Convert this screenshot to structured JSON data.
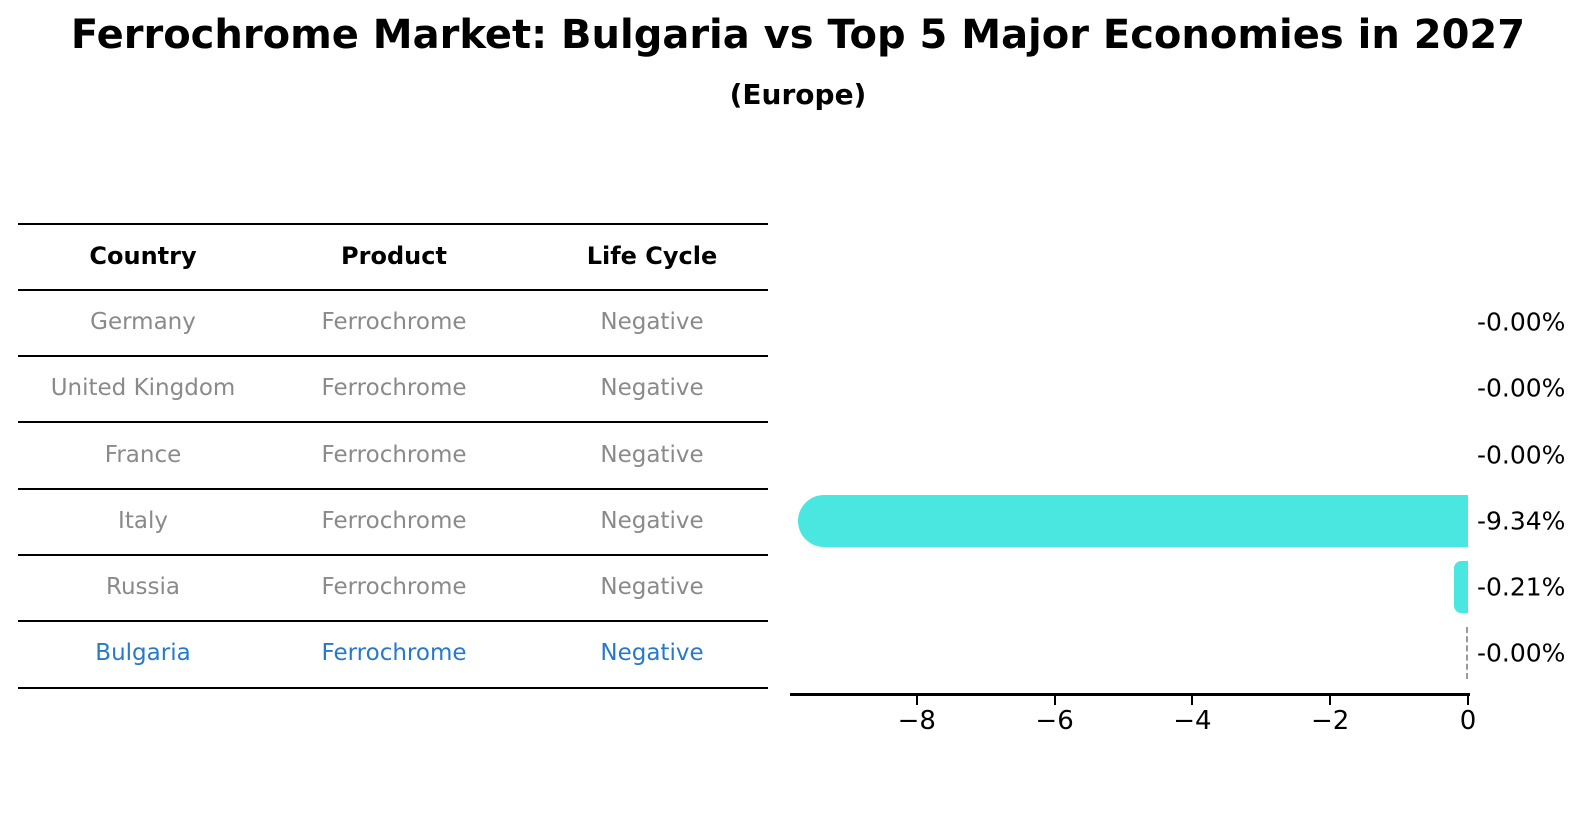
{
  "title": "Ferrochrome Market: Bulgaria vs Top 5 Major Economies in 2027",
  "subtitle": "(Europe)",
  "table": {
    "headers": [
      "Country",
      "Product",
      "Life Cycle"
    ],
    "rows": [
      {
        "country": "Germany",
        "product": "Ferrochrome",
        "life_cycle": "Negative",
        "highlighted": false
      },
      {
        "country": "United Kingdom",
        "product": "Ferrochrome",
        "life_cycle": "Negative",
        "highlighted": false
      },
      {
        "country": "France",
        "product": "Ferrochrome",
        "life_cycle": "Negative",
        "highlighted": false
      },
      {
        "country": "Italy",
        "product": "Ferrochrome",
        "life_cycle": "Negative",
        "highlighted": false
      },
      {
        "country": "Russia",
        "product": "Ferrochrome",
        "life_cycle": "Negative",
        "highlighted": false
      },
      {
        "country": "Bulgaria",
        "product": "Ferrochrome",
        "life_cycle": "Negative",
        "highlighted": true
      }
    ]
  },
  "chart_data": {
    "type": "bar",
    "orientation": "horizontal",
    "title": "Ferrochrome Market: Bulgaria vs Top 5 Major Economies in 2027 (Europe)",
    "categories": [
      "Germany",
      "United Kingdom",
      "France",
      "Italy",
      "Russia",
      "Bulgaria"
    ],
    "values": [
      -0.0,
      -0.0,
      -0.0,
      -9.34,
      -0.21,
      -0.0
    ],
    "value_labels": [
      "-0.00%",
      "-0.00%",
      "-0.00%",
      "-9.34%",
      "-0.21%",
      "-0.00%"
    ],
    "unit": "%",
    "xlim": [
      -9.84,
      0
    ],
    "x_ticks": [
      -8,
      -6,
      -4,
      -2,
      0
    ],
    "x_tick_labels": [
      "−8",
      "−6",
      "−4",
      "−2",
      "0"
    ],
    "grid": false,
    "legend": null,
    "highlight_index": 5,
    "colors": {
      "bar": "#4AE7E0",
      "highlight_text": "#2679cc",
      "table_text": "#8a8a8a",
      "axis": "#000000",
      "zero_marker": "#999999"
    }
  }
}
